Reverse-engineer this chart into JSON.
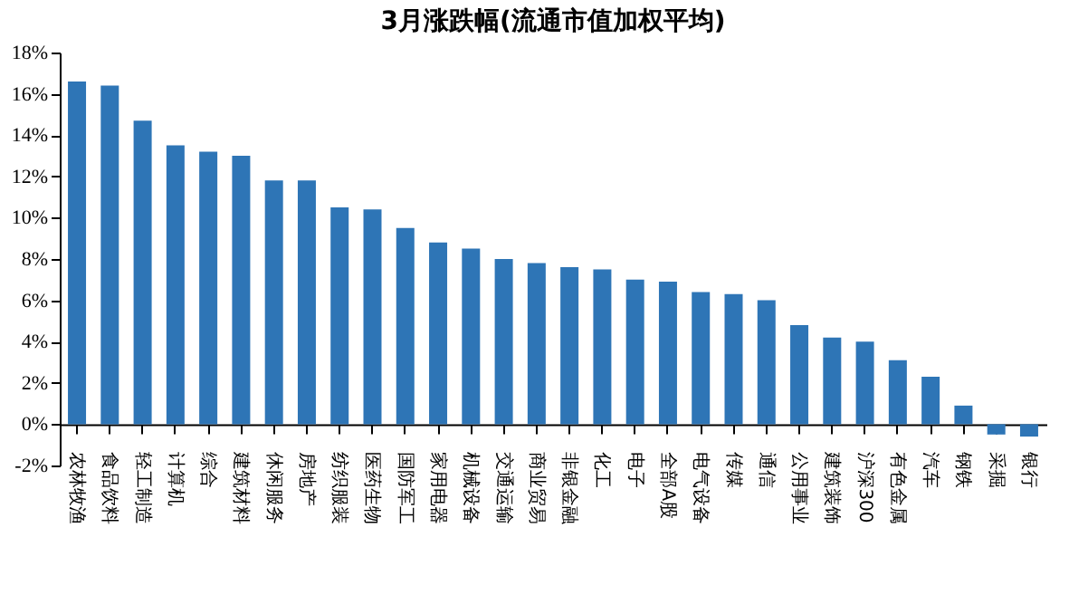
{
  "chart_data": {
    "type": "bar",
    "title": "3月涨跌幅(流通市值加权平均)",
    "categories": [
      "农林牧渔",
      "食品饮料",
      "轻工制造",
      "计算机",
      "综合",
      "建筑材料",
      "休闲服务",
      "房地产",
      "纺织服装",
      "医药生物",
      "国防军工",
      "家用电器",
      "机械设备",
      "交通运输",
      "商业贸易",
      "非银金融",
      "化工",
      "电子",
      "全部A股",
      "电气设备",
      "传媒",
      "通信",
      "公用事业",
      "建筑装饰",
      "沪深300",
      "有色金属",
      "汽车",
      "钢铁",
      "采掘",
      "银行"
    ],
    "values": [
      16.6,
      16.4,
      14.7,
      13.5,
      13.2,
      13.0,
      11.8,
      11.8,
      10.5,
      10.4,
      9.5,
      8.8,
      8.5,
      8.0,
      7.8,
      7.6,
      7.5,
      7.0,
      6.9,
      6.4,
      6.3,
      6.0,
      4.8,
      4.2,
      4.0,
      3.1,
      2.3,
      0.9,
      -0.5,
      -0.6
    ],
    "color": "#2e75b6",
    "ylim": [
      -2,
      18
    ],
    "yticks": [
      {
        "value": -2,
        "label": "-2%"
      },
      {
        "value": 0,
        "label": "0%"
      },
      {
        "value": 2,
        "label": "2%"
      },
      {
        "value": 4,
        "label": "4%"
      },
      {
        "value": 6,
        "label": "6%"
      },
      {
        "value": 8,
        "label": "8%"
      },
      {
        "value": 10,
        "label": "10%"
      },
      {
        "value": 12,
        "label": "12%"
      },
      {
        "value": 14,
        "label": "14%"
      },
      {
        "value": 16,
        "label": "16%"
      },
      {
        "value": 18,
        "label": "18%"
      }
    ],
    "grid": false
  }
}
